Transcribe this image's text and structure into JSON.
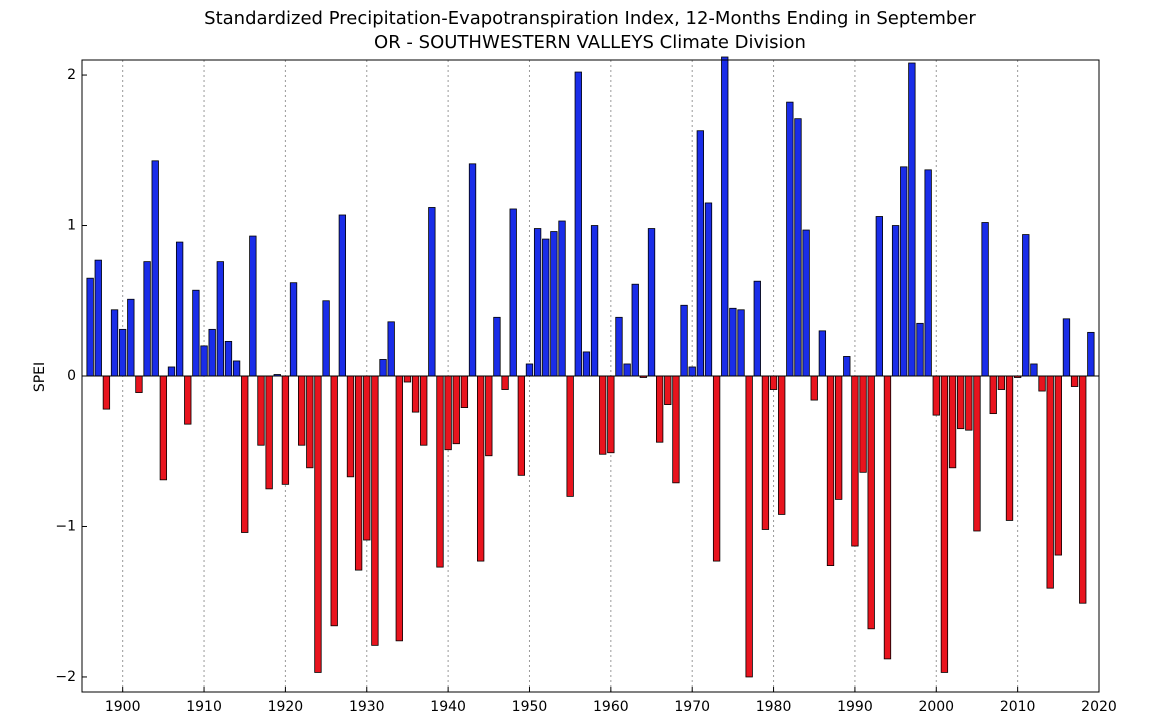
{
  "chart_data": {
    "type": "bar",
    "title": "Standardized Precipitation-Evapotranspiration Index, 12-Months Ending in September",
    "subtitle": "OR - SOUTHWESTERN VALLEYS Climate Division",
    "y_label": "SPEI",
    "x": [
      1896,
      1897,
      1898,
      1899,
      1900,
      1901,
      1902,
      1903,
      1904,
      1905,
      1906,
      1907,
      1908,
      1909,
      1910,
      1911,
      1912,
      1913,
      1914,
      1915,
      1916,
      1917,
      1918,
      1919,
      1920,
      1921,
      1922,
      1923,
      1924,
      1925,
      1926,
      1927,
      1928,
      1929,
      1930,
      1931,
      1932,
      1933,
      1934,
      1935,
      1936,
      1937,
      1938,
      1939,
      1940,
      1941,
      1942,
      1943,
      1944,
      1945,
      1946,
      1947,
      1948,
      1949,
      1950,
      1951,
      1952,
      1953,
      1954,
      1955,
      1956,
      1957,
      1958,
      1959,
      1960,
      1961,
      1962,
      1963,
      1964,
      1965,
      1966,
      1967,
      1968,
      1969,
      1970,
      1971,
      1972,
      1973,
      1974,
      1975,
      1976,
      1977,
      1978,
      1979,
      1980,
      1981,
      1982,
      1983,
      1984,
      1985,
      1986,
      1987,
      1988,
      1989,
      1990,
      1991,
      1992,
      1993,
      1994,
      1995,
      1996,
      1997,
      1998,
      1999,
      2000,
      2001,
      2002,
      2003,
      2004,
      2005,
      2006,
      2007,
      2008,
      2009,
      2010,
      2011,
      2012,
      2013,
      2014,
      2015,
      2016,
      2017,
      2018,
      2019
    ],
    "values": [
      0.65,
      0.77,
      -0.22,
      0.44,
      0.31,
      0.51,
      -0.11,
      0.76,
      1.43,
      -0.69,
      0.06,
      0.89,
      -0.32,
      0.57,
      0.2,
      0.31,
      0.76,
      0.23,
      0.1,
      -1.04,
      0.93,
      -0.46,
      -0.75,
      0.01,
      -0.72,
      0.62,
      -0.46,
      -0.61,
      -1.97,
      0.5,
      -1.66,
      1.07,
      -0.67,
      -1.29,
      -1.09,
      -1.79,
      0.11,
      0.36,
      -1.76,
      -0.04,
      -0.24,
      -0.46,
      1.12,
      -1.27,
      -0.49,
      -0.45,
      -0.21,
      1.41,
      -1.23,
      -0.53,
      0.39,
      -0.09,
      1.11,
      -0.66,
      0.08,
      0.98,
      0.91,
      0.96,
      1.03,
      -0.8,
      2.02,
      0.16,
      1.0,
      -0.52,
      -0.51,
      0.39,
      0.08,
      0.61,
      -0.01,
      0.98,
      -0.44,
      -0.19,
      -0.71,
      0.47,
      0.06,
      1.63,
      1.15,
      -1.23,
      2.12,
      0.45,
      0.44,
      -2.0,
      0.63,
      -1.02,
      -0.09,
      -0.92,
      1.82,
      1.71,
      0.97,
      -0.16,
      0.3,
      -1.26,
      -0.82,
      0.13,
      -1.13,
      -0.64,
      -1.68,
      1.06,
      -1.88,
      1.0,
      1.39,
      2.08,
      0.35,
      1.37,
      -0.26,
      -1.97,
      -0.61,
      -0.35,
      -0.36,
      -1.03,
      1.02,
      -0.25,
      -0.09,
      -0.96,
      -0.01,
      0.94,
      0.08,
      -0.1,
      -1.41,
      -1.19,
      0.38,
      -0.07,
      -1.51,
      0.29
    ],
    "colors": {
      "positive": "#1a2de8",
      "negative": "#e8141e"
    },
    "xlim": [
      1895,
      2020
    ],
    "xticks": [
      1900,
      1910,
      1920,
      1930,
      1940,
      1950,
      1960,
      1970,
      1980,
      1990,
      2000,
      2010,
      2020
    ],
    "ylim": [
      -2.1,
      2.1
    ],
    "yticks": [
      {
        "value": -2,
        "label": "−2"
      },
      {
        "value": -1,
        "label": "−1"
      },
      0,
      1,
      2
    ],
    "grid": "x"
  }
}
